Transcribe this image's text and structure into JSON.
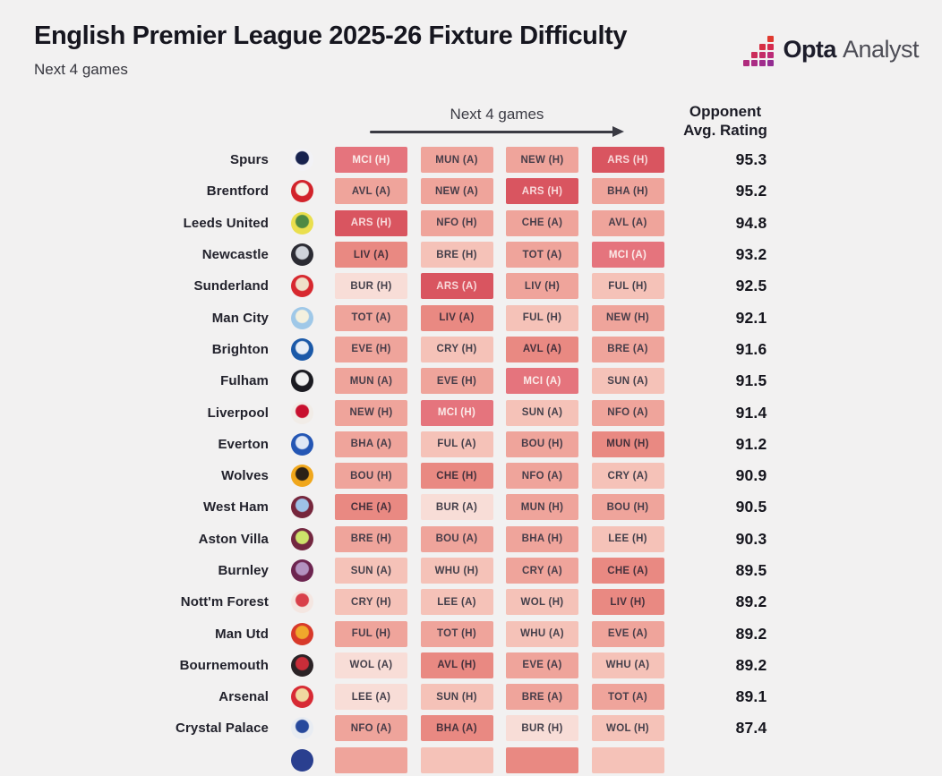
{
  "header": {
    "title": "English Premier League 2025-26 Fixture Difficulty",
    "subtitle": "Next 4 games",
    "brand": {
      "name_bold": "Opta",
      "name_light": "Analyst",
      "mark_columns": [
        [
          "#b02c7e"
        ],
        [
          "#cb2d5b",
          "#ab2c84"
        ],
        [
          "#d62f44",
          "#c42c68",
          "#a02c8c"
        ],
        [
          "#e03a2f",
          "#d52b4e",
          "#bc2b77",
          "#932d92"
        ]
      ]
    }
  },
  "table": {
    "games_header": "Next 4 games",
    "rating_header_line1": "Opponent",
    "rating_header_line2": "Avg. Rating",
    "palette": {
      "t1": {
        "bg": "#f8ddd7",
        "fg": "#45404b"
      },
      "t2": {
        "bg": "#f5c2b8",
        "fg": "#45404b"
      },
      "t3": {
        "bg": "#efa49b",
        "fg": "#473d49"
      },
      "t4": {
        "bg": "#e98982",
        "fg": "#45313c"
      },
      "t4w": {
        "bg": "#e5747d",
        "fg": "#fbebe9"
      },
      "t5": {
        "bg": "#d95560",
        "fg": "#f8d9da"
      }
    }
  },
  "chart_data": {
    "type": "heatmap",
    "title": "English Premier League 2025-26 Fixture Difficulty",
    "subtitle": "Next 4 games",
    "value_column": "Opponent Avg. Rating",
    "difficulty_scale": "darker red = harder fixture",
    "rows": [
      {
        "team": "Spurs",
        "rating": "95.3",
        "fixtures": [
          {
            "label": "MCI (H)",
            "tier": "t4w"
          },
          {
            "label": "MUN (A)",
            "tier": "t3"
          },
          {
            "label": "NEW (H)",
            "tier": "t3"
          },
          {
            "label": "ARS (H)",
            "tier": "t5"
          }
        ],
        "badge": {
          "primary": "#f2f2f6",
          "secondary": "#17224e"
        }
      },
      {
        "team": "Brentford",
        "rating": "95.2",
        "fixtures": [
          {
            "label": "AVL (A)",
            "tier": "t3"
          },
          {
            "label": "NEW (A)",
            "tier": "t3"
          },
          {
            "label": "ARS (H)",
            "tier": "t5"
          },
          {
            "label": "BHA (H)",
            "tier": "t3"
          }
        ],
        "badge": {
          "primary": "#d2232a",
          "secondary": "#f6f2e7"
        }
      },
      {
        "team": "Leeds United",
        "rating": "94.8",
        "fixtures": [
          {
            "label": "ARS (H)",
            "tier": "t5"
          },
          {
            "label": "NFO (H)",
            "tier": "t3"
          },
          {
            "label": "CHE (A)",
            "tier": "t3"
          },
          {
            "label": "AVL (A)",
            "tier": "t3"
          }
        ],
        "badge": {
          "primary": "#eadf4e",
          "secondary": "#4e8a44"
        }
      },
      {
        "team": "Newcastle",
        "rating": "93.2",
        "fixtures": [
          {
            "label": "LIV (A)",
            "tier": "t4"
          },
          {
            "label": "BRE (H)",
            "tier": "t2"
          },
          {
            "label": "TOT (A)",
            "tier": "t3"
          },
          {
            "label": "MCI (A)",
            "tier": "t4w"
          }
        ],
        "badge": {
          "primary": "#2b2b33",
          "secondary": "#cfd3da"
        }
      },
      {
        "team": "Sunderland",
        "rating": "92.5",
        "fixtures": [
          {
            "label": "BUR (H)",
            "tier": "t1"
          },
          {
            "label": "ARS (A)",
            "tier": "t5"
          },
          {
            "label": "LIV (H)",
            "tier": "t3"
          },
          {
            "label": "FUL (H)",
            "tier": "t2"
          }
        ],
        "badge": {
          "primary": "#d7282f",
          "secondary": "#efe0c9"
        }
      },
      {
        "team": "Man City",
        "rating": "92.1",
        "fixtures": [
          {
            "label": "TOT (A)",
            "tier": "t3"
          },
          {
            "label": "LIV (A)",
            "tier": "t4"
          },
          {
            "label": "FUL (H)",
            "tier": "t2"
          },
          {
            "label": "NEW (H)",
            "tier": "t3"
          }
        ],
        "badge": {
          "primary": "#9fc8e8",
          "secondary": "#f3f0de"
        }
      },
      {
        "team": "Brighton",
        "rating": "91.6",
        "fixtures": [
          {
            "label": "EVE (H)",
            "tier": "t3"
          },
          {
            "label": "CRY (H)",
            "tier": "t2"
          },
          {
            "label": "AVL (A)",
            "tier": "t4"
          },
          {
            "label": "BRE (A)",
            "tier": "t3"
          }
        ],
        "badge": {
          "primary": "#1b59a8",
          "secondary": "#e8eef6"
        }
      },
      {
        "team": "Fulham",
        "rating": "91.5",
        "fixtures": [
          {
            "label": "MUN (A)",
            "tier": "t3"
          },
          {
            "label": "EVE (H)",
            "tier": "t3"
          },
          {
            "label": "MCI (A)",
            "tier": "t4w"
          },
          {
            "label": "SUN (A)",
            "tier": "t2"
          }
        ],
        "badge": {
          "primary": "#1b1b21",
          "secondary": "#f1f1f1"
        }
      },
      {
        "team": "Liverpool",
        "rating": "91.4",
        "fixtures": [
          {
            "label": "NEW (H)",
            "tier": "t3"
          },
          {
            "label": "MCI (H)",
            "tier": "t4w"
          },
          {
            "label": "SUN (A)",
            "tier": "t2"
          },
          {
            "label": "NFO (A)",
            "tier": "t3"
          }
        ],
        "badge": {
          "primary": "#f1ece7",
          "secondary": "#c8102e"
        }
      },
      {
        "team": "Everton",
        "rating": "91.2",
        "fixtures": [
          {
            "label": "BHA (A)",
            "tier": "t3"
          },
          {
            "label": "FUL (A)",
            "tier": "t2"
          },
          {
            "label": "BOU (H)",
            "tier": "t3"
          },
          {
            "label": "MUN (H)",
            "tier": "t4"
          }
        ],
        "badge": {
          "primary": "#2456b4",
          "secondary": "#dfe7f5"
        }
      },
      {
        "team": "Wolves",
        "rating": "90.9",
        "fixtures": [
          {
            "label": "BOU (H)",
            "tier": "t3"
          },
          {
            "label": "CHE (H)",
            "tier": "t4"
          },
          {
            "label": "NFO (A)",
            "tier": "t3"
          },
          {
            "label": "CRY (A)",
            "tier": "t2"
          }
        ],
        "badge": {
          "primary": "#f0a71c",
          "secondary": "#2b2117"
        }
      },
      {
        "team": "West Ham",
        "rating": "90.5",
        "fixtures": [
          {
            "label": "CHE (A)",
            "tier": "t4"
          },
          {
            "label": "BUR (A)",
            "tier": "t1"
          },
          {
            "label": "MUN (H)",
            "tier": "t3"
          },
          {
            "label": "BOU (H)",
            "tier": "t3"
          }
        ],
        "badge": {
          "primary": "#76263c",
          "secondary": "#9ec2e8"
        }
      },
      {
        "team": "Aston Villa",
        "rating": "90.3",
        "fixtures": [
          {
            "label": "BRE (H)",
            "tier": "t3"
          },
          {
            "label": "BOU (A)",
            "tier": "t3"
          },
          {
            "label": "BHA (H)",
            "tier": "t3"
          },
          {
            "label": "LEE (H)",
            "tier": "t2"
          }
        ],
        "badge": {
          "primary": "#732740",
          "secondary": "#cde26a"
        }
      },
      {
        "team": "Burnley",
        "rating": "89.5",
        "fixtures": [
          {
            "label": "SUN (A)",
            "tier": "t2"
          },
          {
            "label": "WHU (H)",
            "tier": "t2"
          },
          {
            "label": "CRY (A)",
            "tier": "t3"
          },
          {
            "label": "CHE (A)",
            "tier": "t4"
          }
        ],
        "badge": {
          "primary": "#6d2550",
          "secondary": "#b392c0"
        }
      },
      {
        "team": "Nott'm Forest",
        "rating": "89.2",
        "fixtures": [
          {
            "label": "CRY (H)",
            "tier": "t2"
          },
          {
            "label": "LEE (A)",
            "tier": "t2"
          },
          {
            "label": "WOL (H)",
            "tier": "t2"
          },
          {
            "label": "LIV (H)",
            "tier": "t4"
          }
        ],
        "badge": {
          "primary": "#f4e6e1",
          "secondary": "#d9404a"
        }
      },
      {
        "team": "Man Utd",
        "rating": "89.2",
        "fixtures": [
          {
            "label": "FUL (H)",
            "tier": "t3"
          },
          {
            "label": "TOT (H)",
            "tier": "t3"
          },
          {
            "label": "WHU (A)",
            "tier": "t2"
          },
          {
            "label": "EVE (A)",
            "tier": "t3"
          }
        ],
        "badge": {
          "primary": "#d8392a",
          "secondary": "#f0a82c"
        }
      },
      {
        "team": "Bournemouth",
        "rating": "89.2",
        "fixtures": [
          {
            "label": "WOL (A)",
            "tier": "t1"
          },
          {
            "label": "AVL (H)",
            "tier": "t4"
          },
          {
            "label": "EVE (A)",
            "tier": "t3"
          },
          {
            "label": "WHU (A)",
            "tier": "t2"
          }
        ],
        "badge": {
          "primary": "#2b2326",
          "secondary": "#c92d39"
        }
      },
      {
        "team": "Arsenal",
        "rating": "89.1",
        "fixtures": [
          {
            "label": "LEE (A)",
            "tier": "t1"
          },
          {
            "label": "SUN (H)",
            "tier": "t2"
          },
          {
            "label": "BRE (A)",
            "tier": "t3"
          },
          {
            "label": "TOT (A)",
            "tier": "t3"
          }
        ],
        "badge": {
          "primary": "#d72a34",
          "secondary": "#f0d9a0"
        }
      },
      {
        "team": "Crystal Palace",
        "rating": "87.4",
        "fixtures": [
          {
            "label": "NFO (A)",
            "tier": "t3"
          },
          {
            "label": "BHA (A)",
            "tier": "t4"
          },
          {
            "label": "BUR (H)",
            "tier": "t1"
          },
          {
            "label": "WOL (H)",
            "tier": "t2"
          }
        ],
        "badge": {
          "primary": "#e8ecf2",
          "secondary": "#27499c"
        }
      }
    ],
    "partial_row": {
      "tiers": [
        "t3",
        "t2",
        "t4",
        "t2"
      ],
      "badge": {
        "primary": "#2a3f8f",
        "secondary": "#2a3f8f"
      }
    }
  }
}
